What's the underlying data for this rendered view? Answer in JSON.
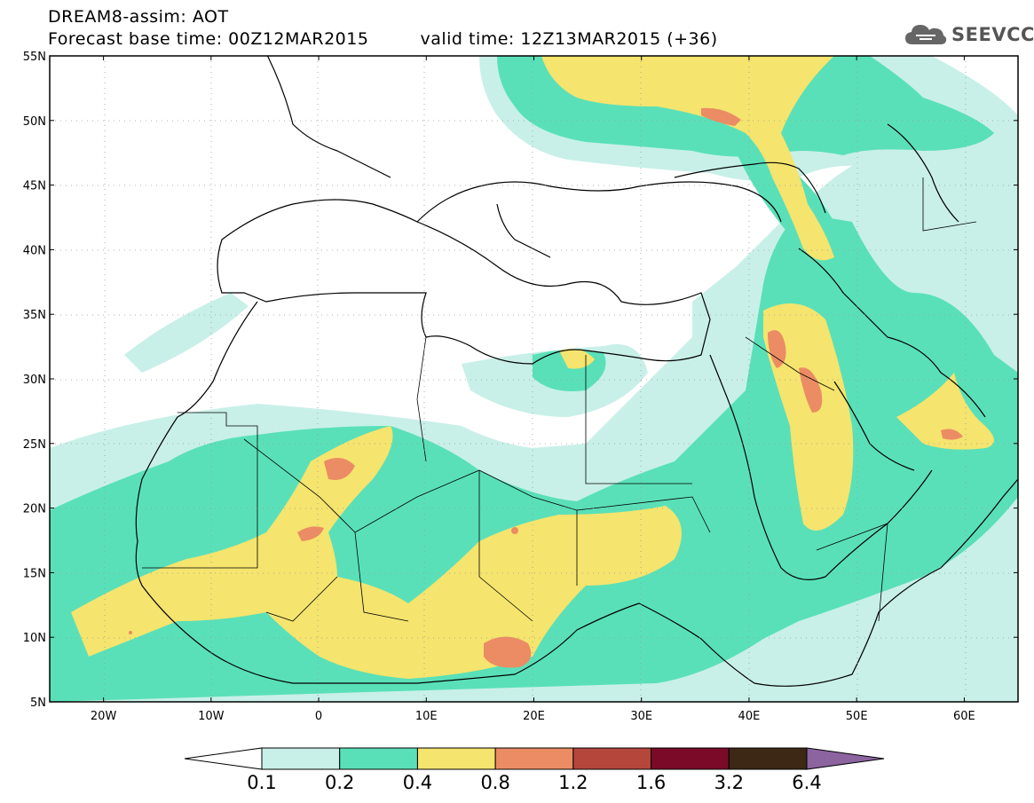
{
  "header": {
    "title": "DREAM8-assim: AOT",
    "base_time": "Forecast base time: 00Z12MAR2015",
    "valid_time": "valid time: 12Z13MAR2015 (+36)"
  },
  "logo": {
    "text": "SEEVCCC",
    "icon": "cloud-icon"
  },
  "axes": {
    "lat_labels": [
      "55N",
      "50N",
      "45N",
      "40N",
      "35N",
      "30N",
      "25N",
      "20N",
      "15N",
      "10N",
      "5N"
    ],
    "lon_labels": [
      "20W",
      "10W",
      "0",
      "10E",
      "20E",
      "30E",
      "40E",
      "50E",
      "60E"
    ],
    "lat_range": [
      5,
      55
    ],
    "lon_range": [
      -25,
      65
    ]
  },
  "legend": {
    "labels": [
      "0.1",
      "0.2",
      "0.4",
      "0.8",
      "1.2",
      "1.6",
      "3.2",
      "6.4"
    ],
    "colors": [
      "#ffffff",
      "#c8f0e8",
      "#5ae0b8",
      "#f5e46e",
      "#eb8c64",
      "#b4463c",
      "#7a0a28",
      "#3c2814",
      "#8c64a0"
    ]
  }
}
